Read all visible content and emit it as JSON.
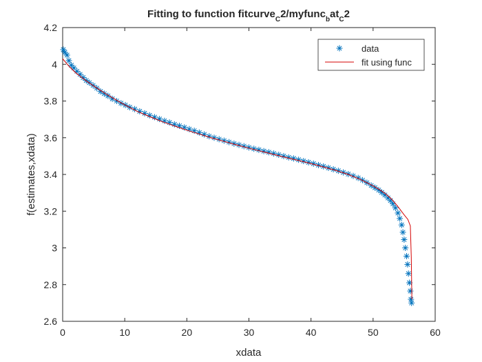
{
  "chart_data": {
    "type": "scatter",
    "title": {
      "main": "Fitting to function fitcurve",
      "parts": [
        {
          "text": "Fitting to function fitcurve",
          "sub": false
        },
        {
          "text": "C",
          "sub": true
        },
        {
          "text": "2/myfunc",
          "sub": false
        },
        {
          "text": "b",
          "sub": true
        },
        {
          "text": "at",
          "sub": false
        },
        {
          "text": "C",
          "sub": true
        },
        {
          "text": "2",
          "sub": false
        }
      ]
    },
    "xlabel": "xdata",
    "ylabel": "f(estimates,xdata)",
    "xlim": [
      0,
      60
    ],
    "ylim": [
      2.6,
      4.2
    ],
    "xticks": [
      0,
      10,
      20,
      30,
      40,
      50,
      60
    ],
    "yticks": [
      2.6,
      2.8,
      3.0,
      3.2,
      3.4,
      3.6,
      3.8,
      4.0,
      4.2
    ],
    "xtick_labels": [
      "0",
      "10",
      "20",
      "30",
      "40",
      "50",
      "60"
    ],
    "ytick_labels": [
      "2.6",
      "2.8",
      "3",
      "3.2",
      "3.4",
      "3.6",
      "3.8",
      "4",
      "4.2"
    ],
    "grid": false,
    "legend_position": "top-right",
    "series": [
      {
        "name": "data",
        "kind": "markers",
        "marker": "asterisk",
        "color": "#0072BD",
        "points": [
          [
            0.1,
            4.08
          ],
          [
            0.35,
            4.065
          ],
          [
            0.7,
            4.05
          ],
          [
            1.0,
            4.02
          ],
          [
            1.4,
            3.995
          ],
          [
            1.8,
            3.98
          ],
          [
            2.3,
            3.962
          ],
          [
            2.8,
            3.945
          ],
          [
            3.3,
            3.928
          ],
          [
            3.8,
            3.912
          ],
          [
            4.3,
            3.9
          ],
          [
            4.9,
            3.885
          ],
          [
            5.5,
            3.87
          ],
          [
            6.1,
            3.852
          ],
          [
            6.7,
            3.84
          ],
          [
            7.3,
            3.828
          ],
          [
            8.0,
            3.812
          ],
          [
            8.7,
            3.8
          ],
          [
            9.4,
            3.788
          ],
          [
            10.1,
            3.778
          ],
          [
            10.8,
            3.766
          ],
          [
            11.6,
            3.756
          ],
          [
            12.4,
            3.744
          ],
          [
            13.2,
            3.733
          ],
          [
            14.0,
            3.722
          ],
          [
            14.8,
            3.712
          ],
          [
            15.6,
            3.702
          ],
          [
            16.4,
            3.692
          ],
          [
            17.2,
            3.683
          ],
          [
            18.0,
            3.673
          ],
          [
            18.8,
            3.665
          ],
          [
            19.6,
            3.656
          ],
          [
            20.4,
            3.647
          ],
          [
            21.2,
            3.638
          ],
          [
            22.0,
            3.628
          ],
          [
            22.8,
            3.618
          ],
          [
            23.6,
            3.608
          ],
          [
            24.4,
            3.6
          ],
          [
            25.2,
            3.592
          ],
          [
            26.0,
            3.584
          ],
          [
            26.8,
            3.576
          ],
          [
            27.6,
            3.568
          ],
          [
            28.4,
            3.561
          ],
          [
            29.2,
            3.554
          ],
          [
            30.0,
            3.547
          ],
          [
            30.8,
            3.54
          ],
          [
            31.6,
            3.534
          ],
          [
            32.4,
            3.527
          ],
          [
            33.2,
            3.521
          ],
          [
            34.0,
            3.514
          ],
          [
            34.8,
            3.507
          ],
          [
            35.6,
            3.5
          ],
          [
            36.4,
            3.493
          ],
          [
            37.2,
            3.487
          ],
          [
            38.0,
            3.48
          ],
          [
            38.8,
            3.473
          ],
          [
            39.6,
            3.466
          ],
          [
            40.4,
            3.459
          ],
          [
            41.2,
            3.451
          ],
          [
            42.0,
            3.444
          ],
          [
            42.8,
            3.436
          ],
          [
            43.6,
            3.428
          ],
          [
            44.4,
            3.42
          ],
          [
            45.2,
            3.411
          ],
          [
            46.0,
            3.402
          ],
          [
            46.8,
            3.392
          ],
          [
            47.6,
            3.381
          ],
          [
            48.3,
            3.369
          ],
          [
            49.0,
            3.355
          ],
          [
            49.7,
            3.34
          ],
          [
            50.3,
            3.328
          ],
          [
            50.9,
            3.315
          ],
          [
            51.4,
            3.302
          ],
          [
            51.9,
            3.288
          ],
          [
            52.4,
            3.272
          ],
          [
            52.8,
            3.258
          ],
          [
            53.2,
            3.24
          ],
          [
            53.6,
            3.218
          ],
          [
            54.0,
            3.19
          ],
          [
            54.3,
            3.16
          ],
          [
            54.6,
            3.125
          ],
          [
            54.8,
            3.085
          ],
          [
            55.0,
            3.045
          ],
          [
            55.2,
            3.0
          ],
          [
            55.4,
            2.955
          ],
          [
            55.55,
            2.91
          ],
          [
            55.7,
            2.86
          ],
          [
            55.85,
            2.81
          ],
          [
            56.0,
            2.765
          ],
          [
            56.1,
            2.72
          ],
          [
            56.2,
            2.7
          ]
        ]
      },
      {
        "name": "fit using func",
        "kind": "line",
        "color": "#D40000",
        "points": [
          [
            0.0,
            4.03
          ],
          [
            1.0,
            3.99
          ],
          [
            2.0,
            3.957
          ],
          [
            3.0,
            3.93
          ],
          [
            4.0,
            3.905
          ],
          [
            5.0,
            3.882
          ],
          [
            6.0,
            3.86
          ],
          [
            7.0,
            3.838
          ],
          [
            8.0,
            3.818
          ],
          [
            9.0,
            3.798
          ],
          [
            10.0,
            3.779
          ],
          [
            12.0,
            3.744
          ],
          [
            14.0,
            3.715
          ],
          [
            16.0,
            3.688
          ],
          [
            18.0,
            3.664
          ],
          [
            20.0,
            3.641
          ],
          [
            22.0,
            3.62
          ],
          [
            24.0,
            3.599
          ],
          [
            26.0,
            3.58
          ],
          [
            28.0,
            3.561
          ],
          [
            30.0,
            3.543
          ],
          [
            32.0,
            3.526
          ],
          [
            34.0,
            3.509
          ],
          [
            36.0,
            3.492
          ],
          [
            38.0,
            3.476
          ],
          [
            40.0,
            3.459
          ],
          [
            42.0,
            3.441
          ],
          [
            44.0,
            3.422
          ],
          [
            46.0,
            3.4
          ],
          [
            48.0,
            3.372
          ],
          [
            50.0,
            3.338
          ],
          [
            51.0,
            3.318
          ],
          [
            52.0,
            3.295
          ],
          [
            53.0,
            3.265
          ],
          [
            54.0,
            3.225
          ],
          [
            55.0,
            3.18
          ],
          [
            55.6,
            3.155
          ],
          [
            56.0,
            3.12
          ],
          [
            56.15,
            2.95
          ],
          [
            56.25,
            2.72
          ]
        ]
      }
    ]
  }
}
